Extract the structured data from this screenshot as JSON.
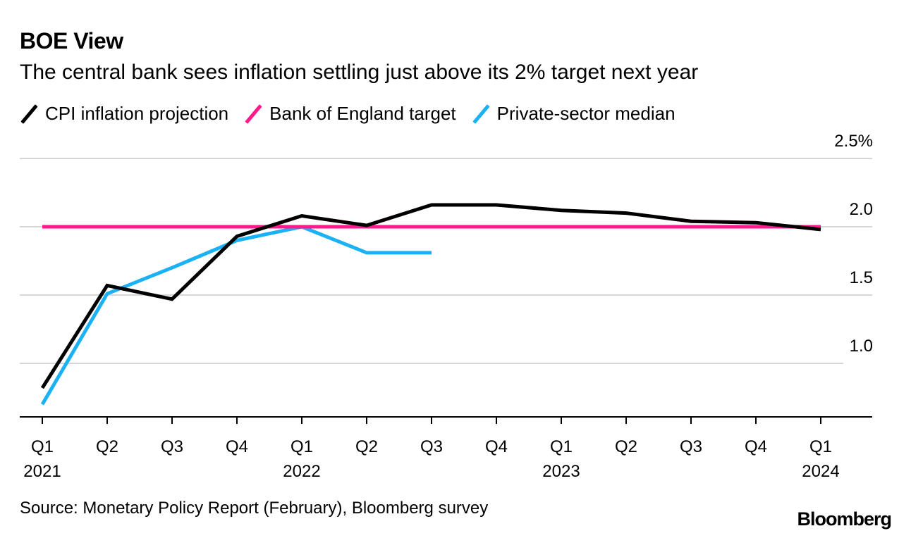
{
  "title": "BOE View",
  "subtitle": "The central bank sees inflation settling just above its 2% target next year",
  "legend": [
    {
      "label": "CPI inflation projection",
      "color": "#000000"
    },
    {
      "label": "Bank of England target",
      "color": "#ff1a8c"
    },
    {
      "label": "Private-sector median",
      "color": "#1ab2f5"
    }
  ],
  "source": "Source: Monetary Policy Report (February), Bloomberg survey",
  "brand": "Bloomberg",
  "chart_data": {
    "type": "line",
    "title": "BOE View",
    "x": [
      "Q1 2021",
      "Q2 2021",
      "Q3 2021",
      "Q4 2021",
      "Q1 2022",
      "Q2 2022",
      "Q3 2022",
      "Q4 2022",
      "Q1 2023",
      "Q2 2023",
      "Q3 2023",
      "Q4 2023",
      "Q1 2024"
    ],
    "x_tick_labels": [
      "Q1",
      "Q2",
      "Q3",
      "Q4",
      "Q1",
      "Q2",
      "Q3",
      "Q4",
      "Q1",
      "Q2",
      "Q3",
      "Q4",
      "Q1"
    ],
    "year_labels": [
      {
        "index": 0,
        "label": "2021"
      },
      {
        "index": 4,
        "label": "2022"
      },
      {
        "index": 8,
        "label": "2023"
      },
      {
        "index": 12,
        "label": "2024"
      }
    ],
    "ylim": [
      0.6,
      2.5
    ],
    "y_ticks": [
      1.0,
      1.5,
      2.0,
      2.5
    ],
    "y_tick_labels": [
      "1.0",
      "1.5",
      "2.0",
      "2.5%"
    ],
    "grid": true,
    "series": [
      {
        "name": "CPI inflation projection",
        "color": "#000000",
        "values": [
          0.82,
          1.57,
          1.47,
          1.93,
          2.08,
          2.01,
          2.16,
          2.16,
          2.12,
          2.1,
          2.04,
          2.03,
          1.98
        ]
      },
      {
        "name": "Bank of England target",
        "color": "#ff1a8c",
        "values": [
          2.0,
          2.0,
          2.0,
          2.0,
          2.0,
          2.0,
          2.0,
          2.0,
          2.0,
          2.0,
          2.0,
          2.0,
          2.0
        ]
      },
      {
        "name": "Private-sector median",
        "color": "#1ab2f5",
        "values": [
          0.7,
          1.51,
          1.7,
          1.9,
          2.0,
          1.81,
          1.81,
          null,
          null,
          null,
          null,
          null,
          null
        ]
      }
    ]
  }
}
